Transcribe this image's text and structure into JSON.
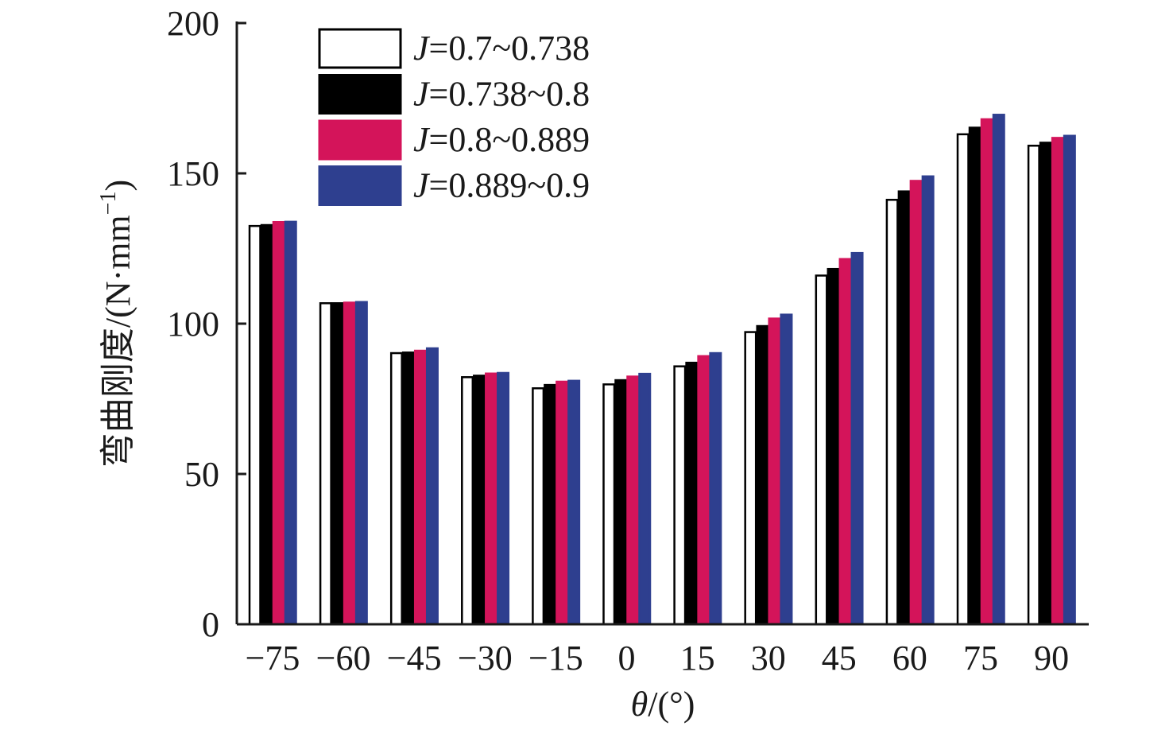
{
  "chart_data": {
    "type": "bar",
    "title": "",
    "xlabel": {
      "symbol": "θ",
      "unit": "/(°)"
    },
    "ylabel": {
      "text": "弯曲刚度/(N·mm",
      "sup": "−1",
      "close": ")"
    },
    "ylim": [
      0,
      200
    ],
    "yticks": [
      0,
      50,
      100,
      150,
      200
    ],
    "grid": false,
    "legend_position": "top-left",
    "categories": [
      "−75",
      "−60",
      "−45",
      "−30",
      "−15",
      "0",
      "15",
      "30",
      "45",
      "60",
      "75",
      "90"
    ],
    "series": [
      {
        "name": {
          "var": "J",
          "range": "=0.7~0.738"
        },
        "color": "#ffffff",
        "stroke": "#000000",
        "values": [
          132.5,
          106.8,
          90.2,
          82.2,
          78.5,
          79.8,
          85.8,
          97.2,
          116.0,
          141.2,
          163.0,
          159.2
        ]
      },
      {
        "name": {
          "var": "J",
          "range": "=0.738~0.8"
        },
        "color": "#000000",
        "stroke": "#000000",
        "values": [
          132.8,
          106.8,
          90.4,
          82.7,
          79.6,
          81.2,
          87.0,
          99.2,
          118.2,
          144.0,
          165.2,
          160.2
        ]
      },
      {
        "name": {
          "var": "J",
          "range": "=0.8~0.889"
        },
        "color": "#d4145a",
        "stroke": "#d4145a",
        "values": [
          133.8,
          107.0,
          91.0,
          83.4,
          80.7,
          82.4,
          89.2,
          101.7,
          121.5,
          147.5,
          168.0,
          161.8
        ]
      },
      {
        "name": {
          "var": "J",
          "range": "=0.889~0.9"
        },
        "color": "#2e3f8f",
        "stroke": "#2e3f8f",
        "values": [
          133.9,
          107.2,
          91.8,
          83.6,
          81.0,
          83.3,
          90.2,
          103.0,
          123.5,
          149.0,
          169.5,
          162.5
        ]
      }
    ]
  }
}
